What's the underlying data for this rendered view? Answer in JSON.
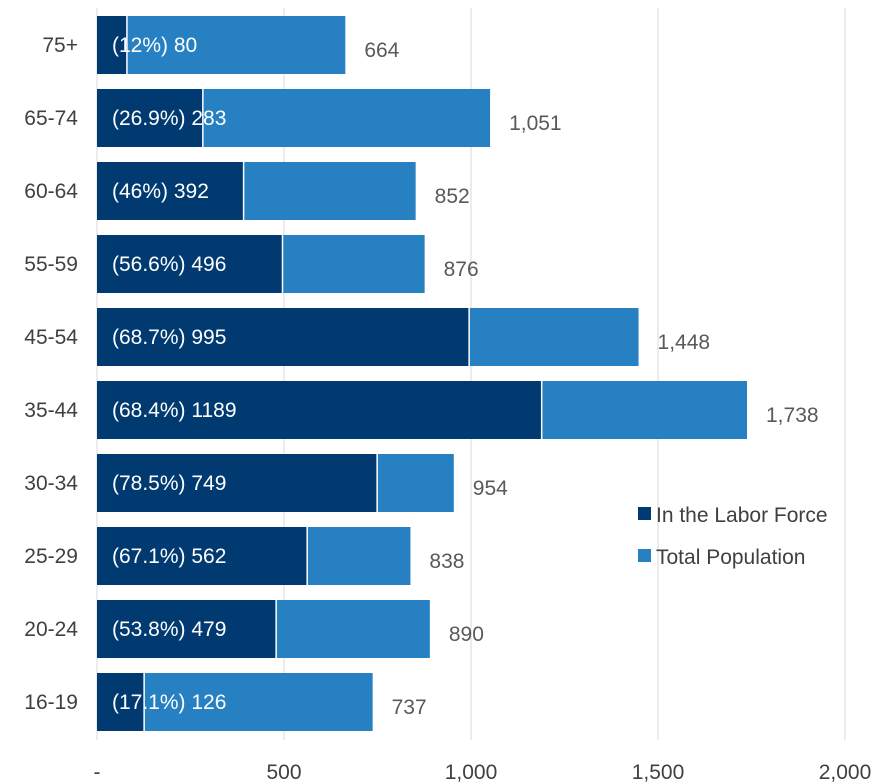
{
  "chart_data": {
    "type": "bar",
    "orientation": "horizontal",
    "stacked_overlay": true,
    "categories": [
      "75+",
      "65-74",
      "60-64",
      "55-59",
      "45-54",
      "35-44",
      "30-34",
      "25-29",
      "20-24",
      "16-19"
    ],
    "series": [
      {
        "name": "In the Labor Force",
        "color": "#003a70",
        "values": [
          80,
          283,
          392,
          496,
          995,
          1189,
          749,
          562,
          479,
          126
        ],
        "data_labels": [
          "(12%) 80",
          "(26.9%) 283",
          "(46%) 392",
          "(56.6%) 496",
          "(68.7%) 995",
          "(68.4%) 1189",
          "(78.5%) 749",
          "(67.1%) 562",
          "(53.8%) 479",
          "(17.1%) 126"
        ]
      },
      {
        "name": "Total Population",
        "color": "#2680c2",
        "values": [
          664,
          1051,
          852,
          876,
          1448,
          1738,
          954,
          838,
          890,
          737
        ],
        "data_labels": [
          "664",
          "1,051",
          "852",
          "876",
          "1,448",
          "1,738",
          "954",
          "838",
          "890",
          "737"
        ]
      }
    ],
    "xlim": [
      0,
      2000
    ],
    "x_ticks": [
      0,
      500,
      1000,
      1500,
      2000
    ],
    "x_tick_labels": [
      "-",
      "500",
      "1,000",
      "1,500",
      "2,000"
    ],
    "grid": true,
    "legend": "center-right"
  }
}
